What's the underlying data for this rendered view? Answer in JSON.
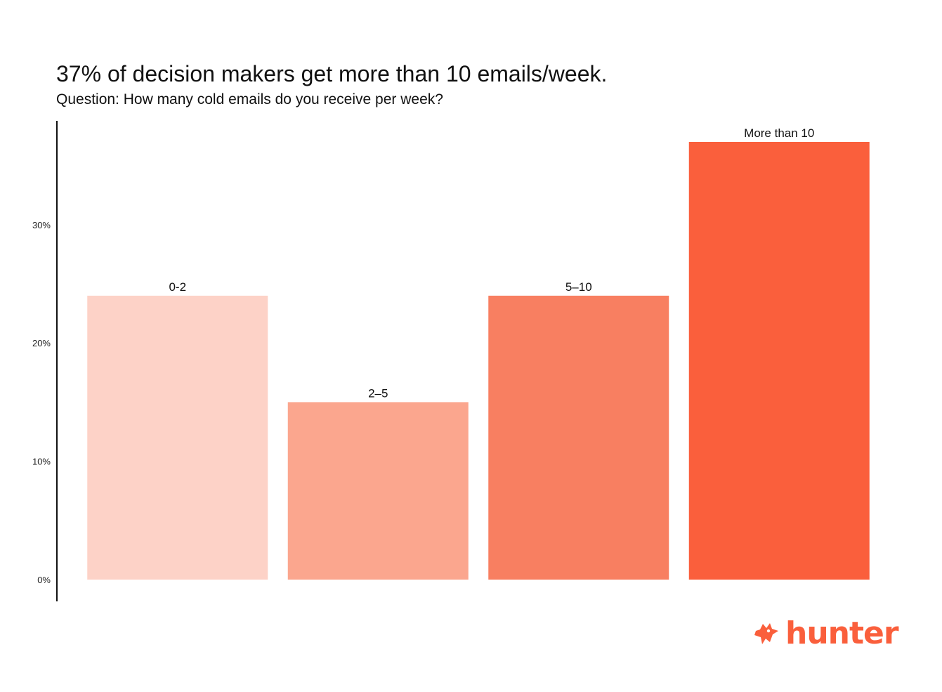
{
  "title": "37% of decision makers get more than 10 emails/week.",
  "subtitle": "Question: How many cold emails do you receive per week?",
  "brand": {
    "name": "hunter",
    "color": "#fa5f3c",
    "logo_icon": "fox-head-icon"
  },
  "chart_data": {
    "type": "bar",
    "categories": [
      "0-2",
      "2–5",
      "5–10",
      "More than 10"
    ],
    "values": [
      24,
      15,
      24,
      37
    ],
    "colors": [
      "#fdd2c7",
      "#fba68e",
      "#f87f61",
      "#fa5f3c"
    ],
    "title": "37% of decision makers get more than 10 emails/week.",
    "subtitle": "Question: How many cold emails do you receive per week?",
    "xlabel": "",
    "ylabel": "",
    "ylim": [
      0,
      37
    ],
    "yticks": [
      0,
      10,
      20,
      30
    ],
    "ytick_labels": [
      "0%",
      "10%",
      "20%",
      "30%"
    ],
    "grid": false,
    "legend": "none",
    "bar_labels": "above"
  }
}
